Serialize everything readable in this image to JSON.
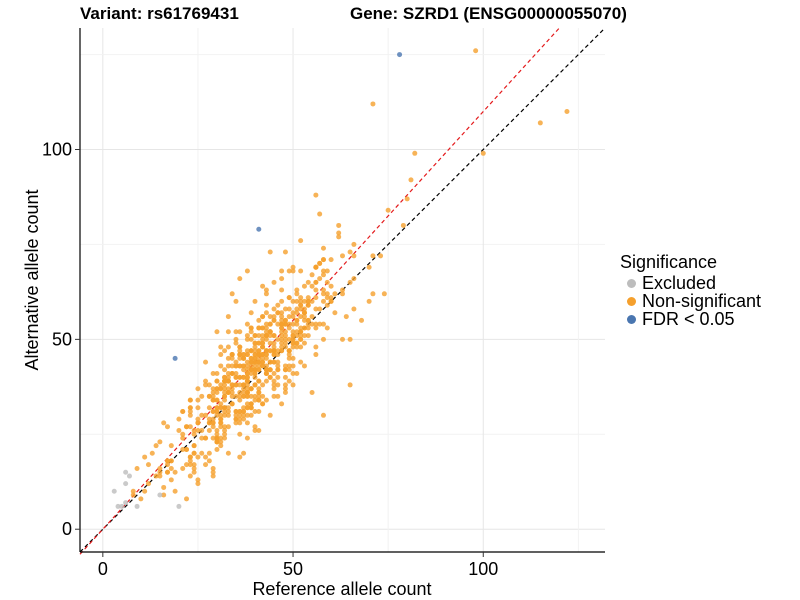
{
  "chart_data": {
    "type": "scatter",
    "title_left": "Variant: rs61769431",
    "title_right": "Gene: SZRD1 (ENSG00000055070)",
    "xlabel": "Reference allele count",
    "ylabel": "Alternative allele count",
    "xlim": [
      -6,
      132
    ],
    "ylim": [
      -6,
      132
    ],
    "xticks": [
      0,
      50,
      100
    ],
    "yticks": [
      0,
      50,
      100
    ],
    "grid": true,
    "legend": {
      "title": "Significance",
      "placement": "right",
      "entries": [
        {
          "label": "Excluded",
          "color": "#bdbdbd"
        },
        {
          "label": "Non-significant",
          "color": "#f5a02d"
        },
        {
          "label": "FDR < 0.05",
          "color": "#4a76b0"
        }
      ]
    },
    "reference_lines": [
      {
        "slope": 1.0,
        "intercept": 0,
        "color": "#000000",
        "style": "dashed"
      },
      {
        "slope": 1.1,
        "intercept": 0,
        "color": "#e41a1c",
        "style": "dashed"
      }
    ],
    "series": [
      {
        "name": "Excluded",
        "color": "#bdbdbd",
        "points": [
          [
            3,
            10
          ],
          [
            4,
            6
          ],
          [
            5,
            6
          ],
          [
            6,
            15
          ],
          [
            7,
            14
          ],
          [
            6,
            12
          ],
          [
            9,
            6
          ],
          [
            15,
            9
          ],
          [
            20,
            6
          ],
          [
            6,
            7
          ]
        ]
      },
      {
        "name": "FDR < 0.05",
        "color": "#4a76b0",
        "points": [
          [
            78,
            125
          ],
          [
            41,
            79
          ],
          [
            19,
            45
          ]
        ]
      },
      {
        "name": "Non-significant",
        "color": "#f5a02d",
        "generated": true,
        "count": 650,
        "center": [
          40,
          43
        ],
        "fixed_points": [
          [
            98,
            126
          ],
          [
            71,
            112
          ],
          [
            115,
            107
          ],
          [
            122,
            110
          ],
          [
            100,
            99
          ],
          [
            82,
            99
          ],
          [
            81,
            92
          ],
          [
            80,
            87
          ],
          [
            79,
            80
          ],
          [
            73,
            72
          ],
          [
            74,
            62
          ],
          [
            58,
            74
          ],
          [
            62,
            77
          ],
          [
            60,
            71
          ],
          [
            65,
            73
          ],
          [
            70,
            69
          ],
          [
            71,
            62
          ],
          [
            56,
            88
          ],
          [
            57,
            83
          ],
          [
            52,
            76
          ],
          [
            48,
            73
          ],
          [
            44,
            73
          ],
          [
            47,
            68
          ],
          [
            55,
            64
          ],
          [
            53,
            60
          ],
          [
            60,
            60
          ],
          [
            66,
            66
          ],
          [
            64,
            56
          ],
          [
            68,
            55
          ],
          [
            63,
            50
          ],
          [
            65,
            38
          ],
          [
            56,
            46
          ],
          [
            58,
            30
          ],
          [
            55,
            36
          ],
          [
            44,
            30
          ],
          [
            40,
            26
          ],
          [
            30,
            34
          ],
          [
            26,
            30
          ],
          [
            25,
            26
          ],
          [
            24,
            22
          ],
          [
            22,
            27
          ],
          [
            16,
            28
          ],
          [
            14,
            22
          ],
          [
            12,
            17
          ],
          [
            11,
            19
          ],
          [
            13,
            20
          ],
          [
            15,
            14
          ],
          [
            12,
            12
          ],
          [
            11,
            10
          ],
          [
            10,
            8
          ],
          [
            8,
            9
          ],
          [
            14,
            14
          ],
          [
            18,
            22
          ],
          [
            20,
            26
          ],
          [
            23,
            30
          ],
          [
            28,
            38
          ],
          [
            31,
            43
          ],
          [
            30,
            52
          ],
          [
            33,
            56
          ],
          [
            34,
            62
          ],
          [
            36,
            66
          ],
          [
            38,
            68
          ],
          [
            42,
            64
          ],
          [
            40,
            60
          ],
          [
            45,
            65
          ],
          [
            46,
            57
          ],
          [
            50,
            54
          ],
          [
            44,
            52
          ],
          [
            48,
            42
          ],
          [
            38,
            24
          ],
          [
            36,
            29
          ],
          [
            42,
            35
          ],
          [
            30,
            24
          ],
          [
            26,
            20
          ],
          [
            22,
            17
          ],
          [
            18,
            18
          ]
        ]
      }
    ]
  }
}
